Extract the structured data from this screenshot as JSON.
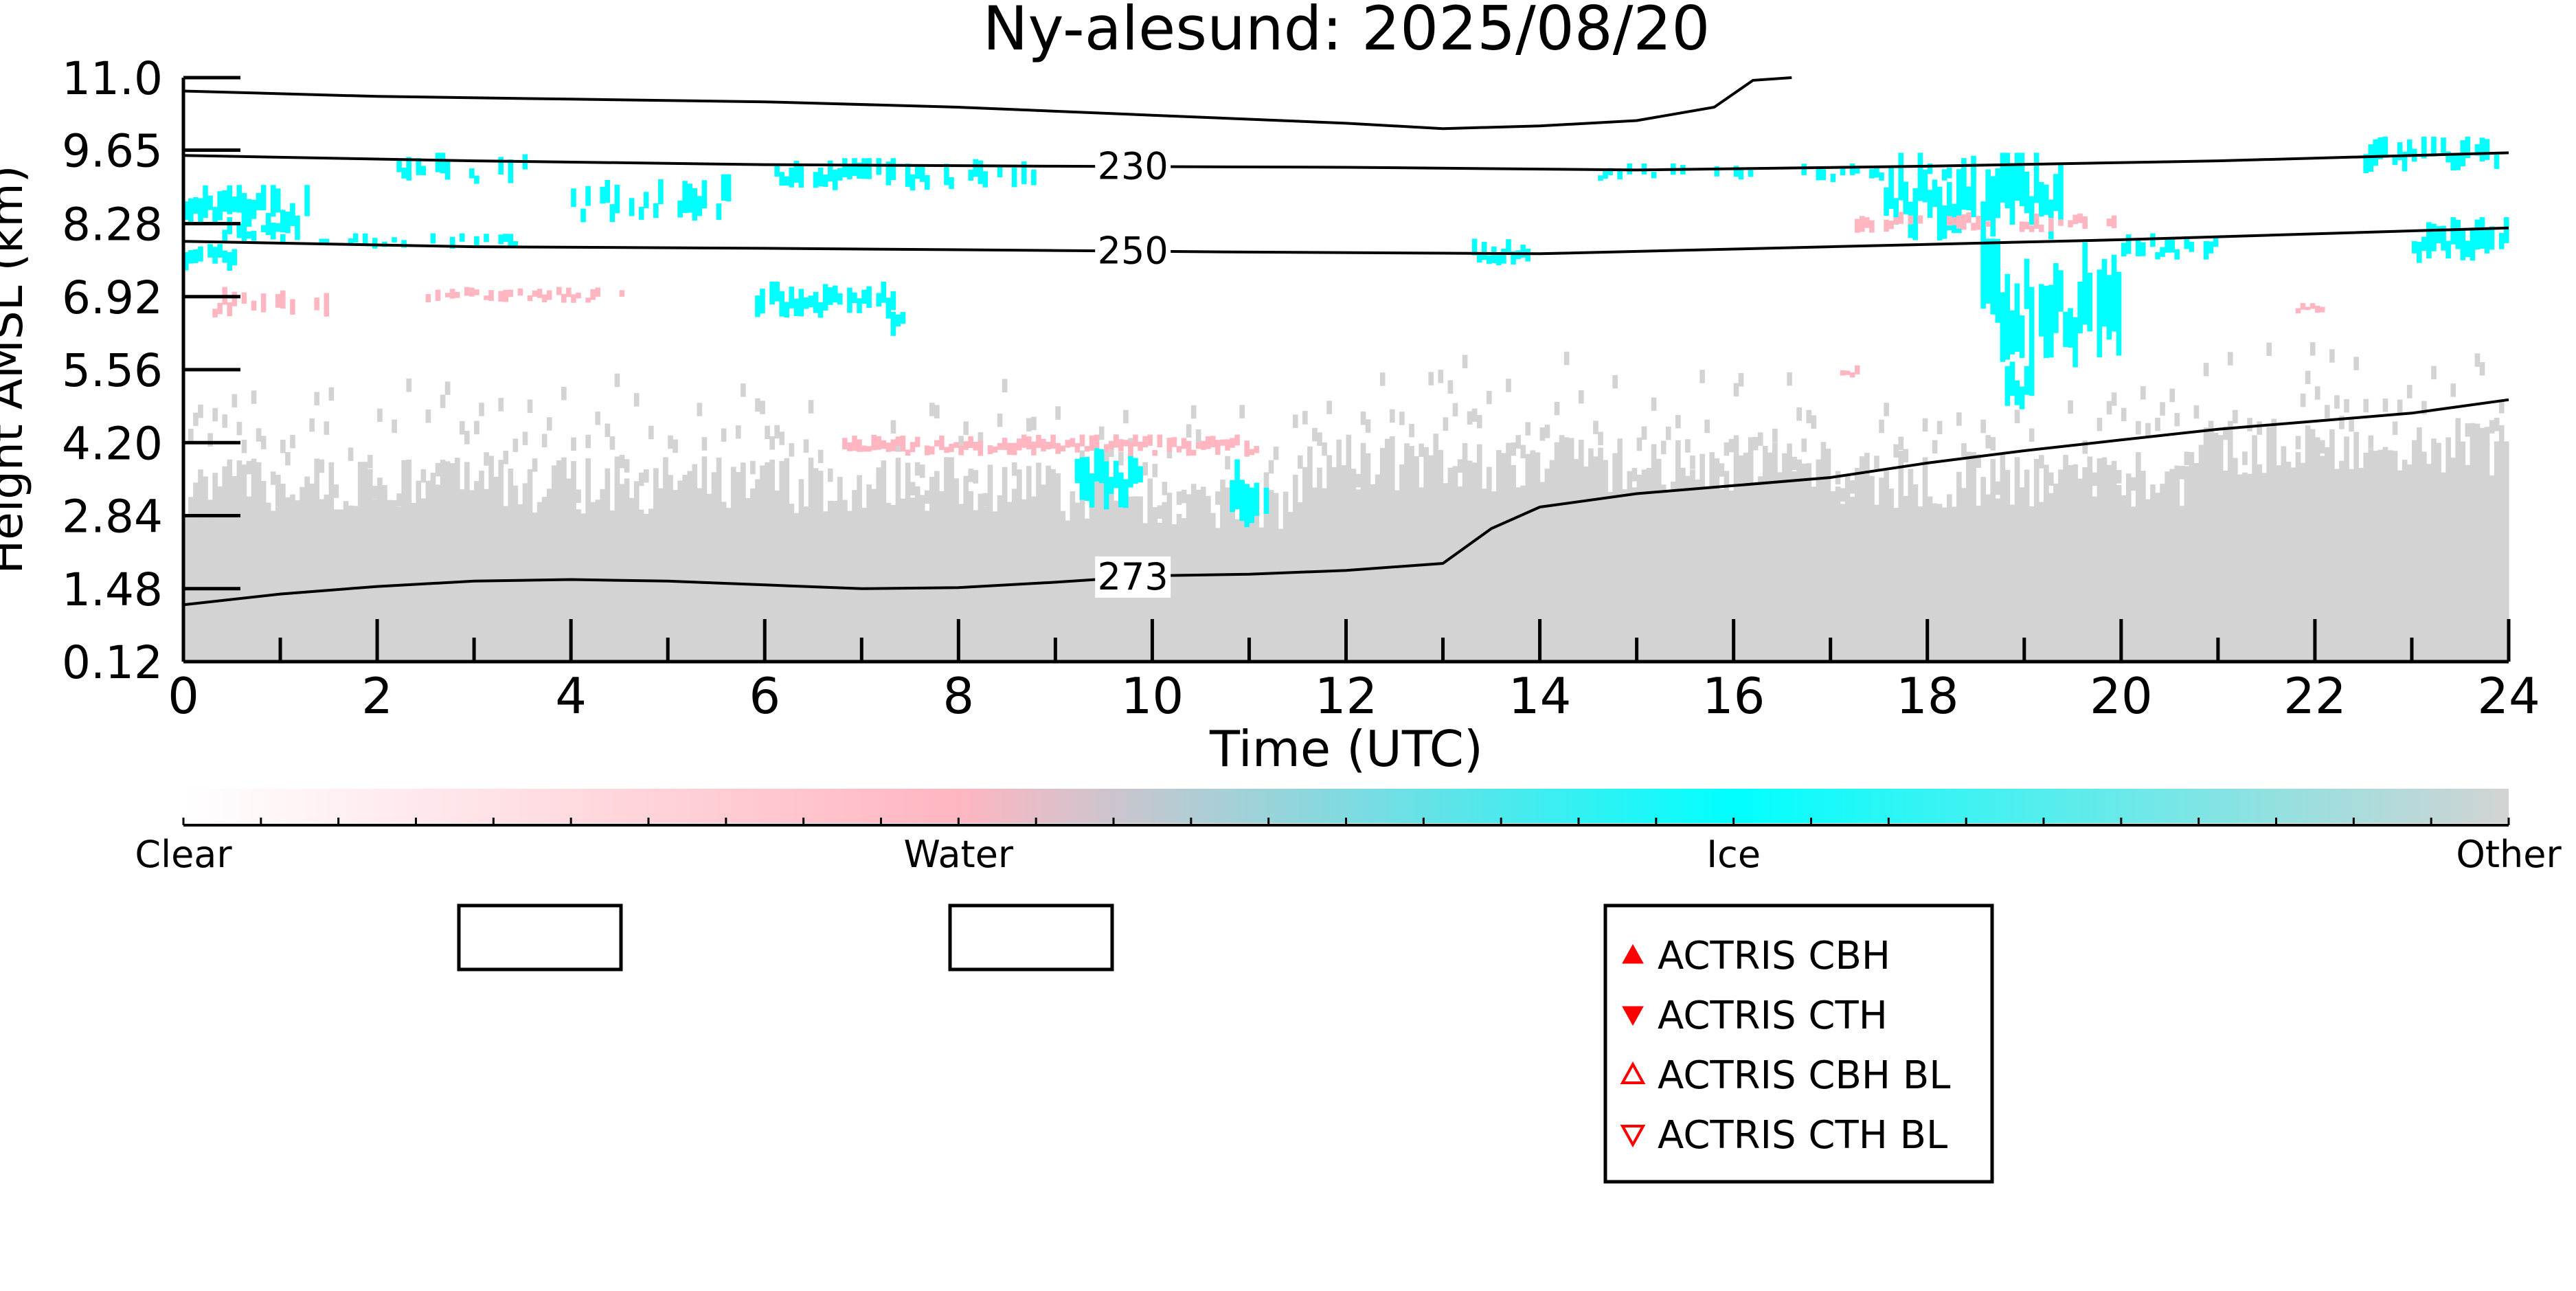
{
  "chart_data": {
    "type": "heatmap",
    "title": "Ny-alesund: 2025/08/20",
    "xlabel": "Time (UTC)",
    "ylabel": "Height AMSL (km)",
    "xlim": [
      0,
      24
    ],
    "ylim": [
      0.12,
      11.0
    ],
    "x_ticks": [
      "0",
      "2",
      "4",
      "6",
      "8",
      "10",
      "12",
      "14",
      "16",
      "18",
      "20",
      "22",
      "24"
    ],
    "y_ticks": [
      "0.12",
      "1.48",
      "2.84",
      "4.20",
      "5.56",
      "6.92",
      "8.28",
      "9.65",
      "11.0"
    ],
    "categories": [
      "Clear",
      "Water",
      "Ice",
      "Other"
    ],
    "colors": {
      "clear": "#ffffff",
      "water": "#ffb6c1",
      "ice": "#00ffff",
      "other": "#d3d3d3",
      "contour": "#000000",
      "marker": "#ff0000"
    },
    "isotherms": [
      {
        "label": "230",
        "points": [
          [
            0,
            9.55
          ],
          [
            3,
            9.45
          ],
          [
            6,
            9.38
          ],
          [
            9,
            9.35
          ],
          [
            12,
            9.33
          ],
          [
            15,
            9.28
          ],
          [
            18,
            9.35
          ],
          [
            21,
            9.45
          ],
          [
            24,
            9.6
          ]
        ]
      },
      {
        "label": "250",
        "points": [
          [
            0,
            7.95
          ],
          [
            3,
            7.85
          ],
          [
            6,
            7.82
          ],
          [
            9,
            7.78
          ],
          [
            11,
            7.75
          ],
          [
            13,
            7.73
          ],
          [
            14,
            7.72
          ],
          [
            17,
            7.85
          ],
          [
            20,
            7.98
          ],
          [
            24,
            8.2
          ]
        ]
      },
      {
        "label": "273",
        "points": [
          [
            0,
            1.18
          ],
          [
            1,
            1.38
          ],
          [
            2,
            1.52
          ],
          [
            3,
            1.62
          ],
          [
            4,
            1.65
          ],
          [
            5,
            1.62
          ],
          [
            6,
            1.55
          ],
          [
            7,
            1.48
          ],
          [
            8,
            1.5
          ],
          [
            9,
            1.6
          ],
          [
            10,
            1.72
          ],
          [
            11,
            1.75
          ],
          [
            12,
            1.82
          ],
          [
            13,
            1.95
          ],
          [
            13.5,
            2.6
          ],
          [
            14,
            3.0
          ],
          [
            15,
            3.25
          ],
          [
            16,
            3.4
          ],
          [
            17,
            3.55
          ],
          [
            18,
            3.82
          ],
          [
            19,
            4.05
          ],
          [
            20,
            4.25
          ],
          [
            21,
            4.45
          ],
          [
            22,
            4.6
          ],
          [
            23,
            4.75
          ],
          [
            24,
            5.0
          ]
        ]
      },
      {
        "label": "",
        "points": [
          [
            0,
            10.75
          ],
          [
            2,
            10.65
          ],
          [
            4,
            10.6
          ],
          [
            6,
            10.55
          ],
          [
            8,
            10.45
          ],
          [
            10,
            10.3
          ],
          [
            12,
            10.15
          ],
          [
            13,
            10.05
          ],
          [
            14,
            10.1
          ],
          [
            15,
            10.2
          ],
          [
            15.8,
            10.45
          ],
          [
            16.2,
            10.95
          ],
          [
            16.6,
            11.0
          ]
        ]
      }
    ],
    "legend": [
      {
        "label": "ACTRIS CBH",
        "marker": "triangle-up-filled"
      },
      {
        "label": "ACTRIS CTH",
        "marker": "triangle-down-filled"
      },
      {
        "label": "ACTRIS CBH BL",
        "marker": "triangle-up-open"
      },
      {
        "label": "ACTRIS CTH BL",
        "marker": "triangle-down-open"
      }
    ],
    "legend_position": "lower-right",
    "grid": false
  }
}
